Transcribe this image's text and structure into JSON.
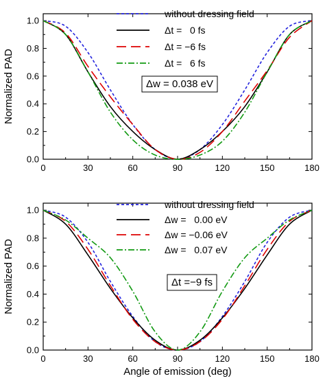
{
  "xlabel_shared": "Angle of emission (deg)",
  "chart_data": [
    {
      "type": "line",
      "xlabel": "",
      "ylabel": "Normalized PAD",
      "xlim": [
        0,
        180
      ],
      "ylim": [
        0,
        1.05
      ],
      "xticks": [
        0,
        30,
        60,
        90,
        120,
        150,
        180
      ],
      "yticks": [
        0.0,
        0.2,
        0.4,
        0.6,
        0.8,
        1.0
      ],
      "xtick_labels": [
        "0",
        "30",
        "60",
        "90",
        "120",
        "150",
        "180"
      ],
      "ytick_labels": [
        "0.0",
        "0.2",
        "0.4",
        "0.6",
        "0.8",
        "1.0"
      ],
      "legend_position": "top-right",
      "annotation": "Δw = 0.038 eV",
      "x": [
        0,
        15,
        30,
        45,
        60,
        75,
        90,
        105,
        120,
        135,
        150,
        165,
        180
      ],
      "series": [
        {
          "name": "without dressing field",
          "color": "#2222dd",
          "dash": "short-dash",
          "values": [
            1.0,
            0.96,
            0.77,
            0.5,
            0.25,
            0.07,
            0.0,
            0.07,
            0.25,
            0.5,
            0.77,
            0.96,
            1.0
          ]
        },
        {
          "name": "Δt =   0 fs",
          "color": "#000000",
          "dash": "solid",
          "values": [
            1.0,
            0.9,
            0.63,
            0.38,
            0.2,
            0.07,
            0.0,
            0.07,
            0.2,
            0.38,
            0.63,
            0.9,
            1.0
          ]
        },
        {
          "name": "Δt = −6 fs",
          "color": "#dd0000",
          "dash": "long-dash",
          "values": [
            1.0,
            0.91,
            0.67,
            0.45,
            0.25,
            0.07,
            0.0,
            0.05,
            0.2,
            0.42,
            0.64,
            0.88,
            1.0
          ]
        },
        {
          "name": "Δt =   6 fs",
          "color": "#119911",
          "dash": "dash-dot",
          "values": [
            1.0,
            0.9,
            0.63,
            0.34,
            0.14,
            0.03,
            0.0,
            0.03,
            0.13,
            0.34,
            0.63,
            0.9,
            1.0
          ]
        }
      ]
    },
    {
      "type": "line",
      "xlabel": "Angle of emission (deg)",
      "ylabel": "Normalized PAD",
      "xlim": [
        0,
        180
      ],
      "ylim": [
        0,
        1.05
      ],
      "xticks": [
        0,
        30,
        60,
        90,
        120,
        150,
        180
      ],
      "yticks": [
        0.0,
        0.2,
        0.4,
        0.6,
        0.8,
        1.0
      ],
      "xtick_labels": [
        "0",
        "30",
        "60",
        "90",
        "120",
        "150",
        "180"
      ],
      "ytick_labels": [
        "0.0",
        "0.2",
        "0.4",
        "0.6",
        "0.8",
        "1.0"
      ],
      "legend_position": "top-right",
      "annotation": "Δt =−9 fs",
      "x": [
        0,
        15,
        30,
        45,
        60,
        75,
        90,
        105,
        120,
        135,
        150,
        165,
        180
      ],
      "series": [
        {
          "name": "without dressing field",
          "color": "#2222dd",
          "dash": "short-dash",
          "values": [
            1.0,
            0.95,
            0.77,
            0.49,
            0.24,
            0.06,
            0.0,
            0.06,
            0.24,
            0.49,
            0.77,
            0.95,
            1.0
          ]
        },
        {
          "name": "Δw =   0.00 eV",
          "color": "#000000",
          "dash": "solid",
          "values": [
            1.0,
            0.9,
            0.68,
            0.44,
            0.23,
            0.07,
            0.0,
            0.07,
            0.23,
            0.44,
            0.68,
            0.9,
            1.0
          ]
        },
        {
          "name": "Δw = −0.06 eV",
          "color": "#dd0000",
          "dash": "long-dash",
          "values": [
            1.0,
            0.92,
            0.72,
            0.46,
            0.22,
            0.06,
            0.0,
            0.06,
            0.22,
            0.46,
            0.72,
            0.92,
            1.0
          ]
        },
        {
          "name": "Δw =   0.07 eV",
          "color": "#119911",
          "dash": "dash-dot",
          "values": [
            1.0,
            0.93,
            0.8,
            0.66,
            0.42,
            0.13,
            0.0,
            0.13,
            0.42,
            0.66,
            0.8,
            0.93,
            1.0
          ]
        }
      ]
    }
  ]
}
